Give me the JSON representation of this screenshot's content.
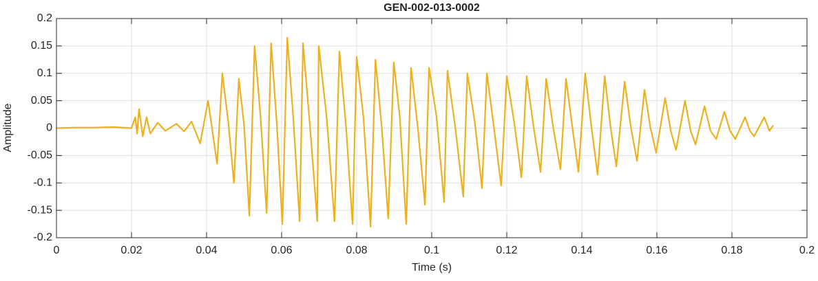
{
  "chart_data": {
    "type": "line",
    "title": "GEN-002-013-0002",
    "x_label": "Time (s)",
    "y_label": "Amplitude",
    "color": "#EDB120",
    "grid": true,
    "xlim": [
      0,
      0.2
    ],
    "ylim": [
      -0.2,
      0.2
    ],
    "xticks": [
      0,
      0.02,
      0.04,
      0.06,
      0.08,
      0.1,
      0.12,
      0.14,
      0.16,
      0.18,
      0.2
    ],
    "yticks": [
      -0.2,
      -0.15,
      -0.1,
      -0.05,
      0,
      0.05,
      0.1,
      0.15,
      0.2
    ],
    "x": [
      0,
      0.005,
      0.01,
      0.015,
      0.02,
      0.021,
      0.0215,
      0.022,
      0.023,
      0.024,
      0.025,
      0.027,
      0.029,
      0.032,
      0.034,
      0.036,
      0.0383,
      0.0404,
      0.0428,
      0.0442,
      0.0458,
      0.0473,
      0.0486,
      0.05,
      0.0514,
      0.0528,
      0.0544,
      0.056,
      0.0572,
      0.0587,
      0.0602,
      0.0615,
      0.0631,
      0.0648,
      0.0657,
      0.0676,
      0.0695,
      0.0699,
      0.072,
      0.0741,
      0.0754,
      0.0772,
      0.0789,
      0.08,
      0.0818,
      0.0837,
      0.085,
      0.0867,
      0.0884,
      0.0899,
      0.0915,
      0.0932,
      0.0945,
      0.0963,
      0.0982,
      0.0993,
      0.1013,
      0.1033,
      0.1042,
      0.1063,
      0.1084,
      0.1095,
      0.1115,
      0.1134,
      0.1147,
      0.1166,
      0.1185,
      0.12,
      0.122,
      0.1239,
      0.1253,
      0.1272,
      0.129,
      0.1305,
      0.1324,
      0.1343,
      0.1358,
      0.1375,
      0.1391,
      0.1409,
      0.1426,
      0.1442,
      0.1461,
      0.1477,
      0.1492,
      0.1514,
      0.1531,
      0.1547,
      0.1567,
      0.1583,
      0.1598,
      0.1622,
      0.1637,
      0.1651,
      0.1675,
      0.169,
      0.1703,
      0.1727,
      0.1743,
      0.1758,
      0.178,
      0.1795,
      0.1809,
      0.1835,
      0.1848,
      0.1859,
      0.1886,
      0.19,
      0.191
    ],
    "values": [
      0,
      0.001,
      0.001,
      0.002,
      0,
      0.02,
      -0.01,
      0.035,
      -0.015,
      0.02,
      -0.01,
      0.01,
      -0.005,
      0.008,
      -0.006,
      0.012,
      -0.028,
      0.05,
      -0.065,
      0.1,
      0.01,
      -0.1,
      0.09,
      0.005,
      -0.16,
      0.15,
      0.02,
      -0.155,
      0.155,
      0.01,
      -0.175,
      0.165,
      0.02,
      -0.17,
      0.155,
      0.0,
      -0.17,
      0.15,
      0.02,
      -0.17,
      0.14,
      0.0,
      -0.175,
      0.13,
      0.02,
      -0.18,
      0.125,
      0.0,
      -0.165,
      0.12,
      0.02,
      -0.175,
      0.11,
      0.0,
      -0.14,
      0.11,
      0.02,
      -0.135,
      0.105,
      0.0,
      -0.125,
      0.1,
      0.01,
      -0.11,
      0.1,
      0.0,
      -0.105,
      0.095,
      0.01,
      -0.09,
      0.095,
      0.0,
      -0.08,
      0.09,
      0.0,
      -0.075,
      0.09,
      0.0,
      -0.08,
      0.1,
      0.0,
      -0.085,
      0.095,
      0.0,
      -0.07,
      0.085,
      0.0,
      -0.06,
      0.07,
      0.0,
      -0.045,
      0.055,
      -0.005,
      -0.04,
      0.05,
      -0.005,
      -0.03,
      0.04,
      -0.005,
      -0.02,
      0.03,
      -0.005,
      -0.02,
      0.02,
      -0.005,
      -0.015,
      0.02,
      -0.005,
      0.005
    ]
  }
}
